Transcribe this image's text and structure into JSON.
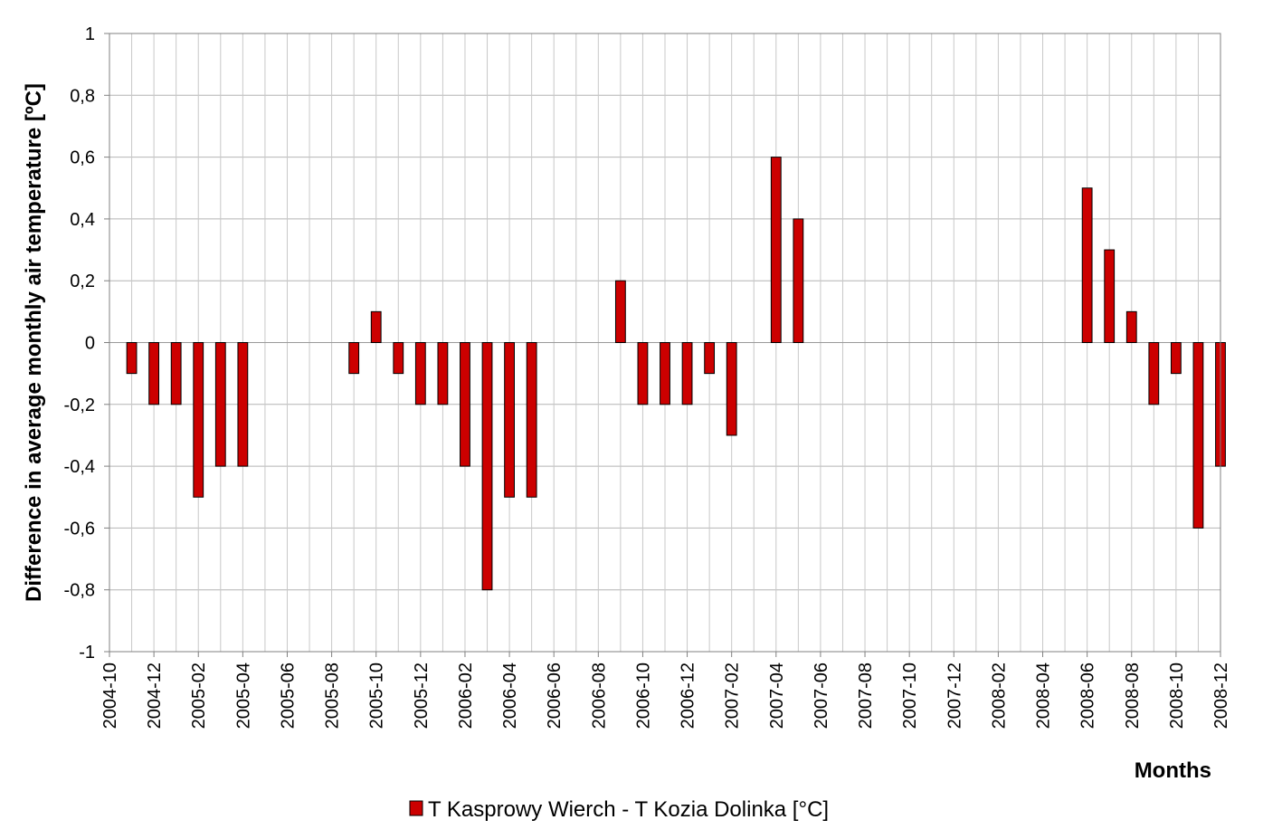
{
  "chart_data": {
    "type": "bar",
    "ylabel": "Difference in average monthly air temperature [ºC]",
    "xlabel": "Months",
    "ylim": [
      -1,
      1
    ],
    "y_ticks": [
      1,
      0.8,
      0.6,
      0.4,
      0.2,
      0,
      -0.2,
      -0.4,
      -0.6,
      -0.8,
      -1
    ],
    "y_tick_labels": [
      "1",
      "0,8",
      "0,6",
      "0,4",
      "0,2",
      "0",
      "-0,2",
      "-0,4",
      "-0,6",
      "-0,8",
      "-1"
    ],
    "categories": [
      "2004-10",
      "2004-11",
      "2004-12",
      "2005-01",
      "2005-02",
      "2005-03",
      "2005-04",
      "2005-05",
      "2005-06",
      "2005-07",
      "2005-08",
      "2005-09",
      "2005-10",
      "2005-11",
      "2005-12",
      "2006-01",
      "2006-02",
      "2006-03",
      "2006-04",
      "2006-05",
      "2006-06",
      "2006-07",
      "2006-08",
      "2006-09",
      "2006-10",
      "2006-11",
      "2006-12",
      "2007-01",
      "2007-02",
      "2007-03",
      "2007-04",
      "2007-05",
      "2007-06",
      "2007-07",
      "2007-08",
      "2007-09",
      "2007-10",
      "2007-11",
      "2007-12",
      "2008-01",
      "2008-02",
      "2008-03",
      "2008-04",
      "2008-05",
      "2008-06",
      "2008-07",
      "2008-08",
      "2008-09",
      "2008-10",
      "2008-11",
      "2008-12"
    ],
    "x_tick_labels": [
      "2004-10",
      "2004-12",
      "2005-02",
      "2005-04",
      "2005-06",
      "2005-08",
      "2005-10",
      "2005-12",
      "2006-02",
      "2006-04",
      "2006-06",
      "2006-08",
      "2006-10",
      "2006-12",
      "2007-02",
      "2007-04",
      "2007-06",
      "2007-08",
      "2007-10",
      "2007-12",
      "2008-02",
      "2008-04",
      "2008-06",
      "2008-08",
      "2008-10",
      "2008-12"
    ],
    "grid": true,
    "legend_position": "bottom-center",
    "series": [
      {
        "name": "T Kasprowy Wierch - T Kozia Dolinka [°C]",
        "color": "#cc0000",
        "values": [
          null,
          -0.1,
          -0.2,
          -0.2,
          -0.5,
          -0.4,
          -0.4,
          null,
          null,
          null,
          null,
          -0.1,
          0.1,
          -0.1,
          -0.2,
          -0.2,
          -0.4,
          -0.8,
          -0.5,
          -0.5,
          null,
          null,
          null,
          0.2,
          -0.2,
          -0.2,
          -0.2,
          -0.1,
          -0.3,
          null,
          0.6,
          0.4,
          null,
          null,
          null,
          null,
          null,
          null,
          null,
          null,
          null,
          null,
          null,
          null,
          0.5,
          0.3,
          0.1,
          -0.2,
          -0.1,
          -0.6,
          -0.4
        ]
      }
    ]
  }
}
